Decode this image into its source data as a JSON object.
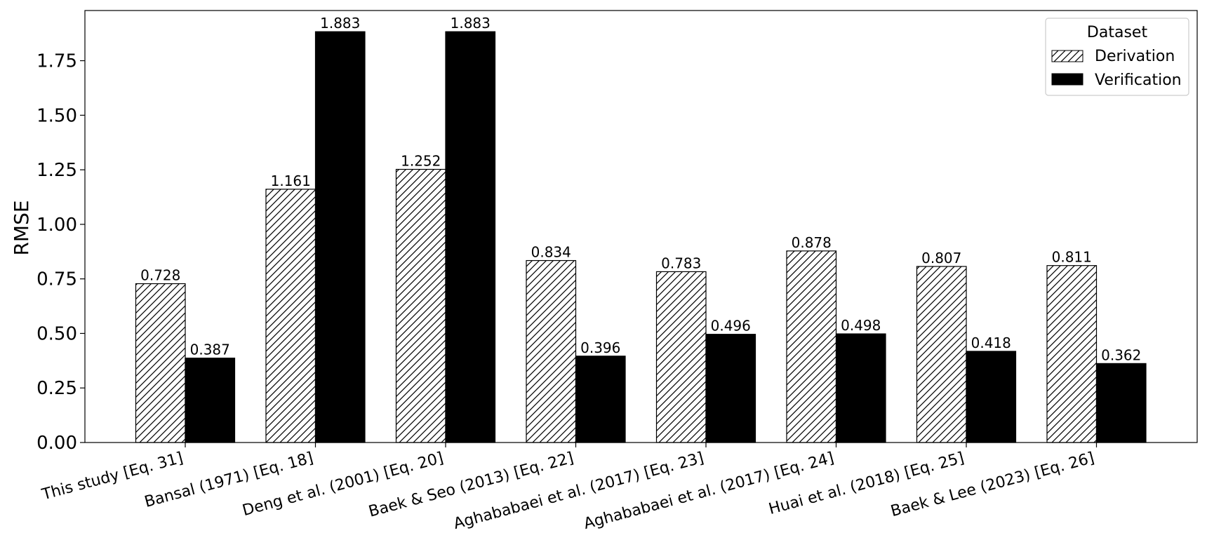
{
  "chart_data": {
    "type": "bar",
    "categories": [
      "This study [Eq. 31]",
      "Bansal (1971) [Eq. 18]",
      "Deng et al. (2001) [Eq. 20]",
      "Baek & Seo (2013) [Eq. 22]",
      "Aghababaei et al. (2017) [Eq. 23]",
      "Aghababaei et al. (2017) [Eq. 24]",
      "Huai et al. (2018) [Eq. 25]",
      "Baek & Lee (2023) [Eq. 26]"
    ],
    "series": [
      {
        "name": "Derivation",
        "values": [
          0.728,
          1.161,
          1.252,
          0.834,
          0.783,
          0.878,
          0.807,
          0.811
        ],
        "labels": [
          "0.728",
          "1.161",
          "1.252",
          "0.834",
          "0.783",
          "0.878",
          "0.807",
          "0.811"
        ],
        "fill": "hatch",
        "color": "#ffffff"
      },
      {
        "name": "Verification",
        "values": [
          0.387,
          1.883,
          1.883,
          0.396,
          0.496,
          0.498,
          0.418,
          0.362
        ],
        "labels": [
          "0.387",
          "1.883",
          "1.883",
          "0.396",
          "0.496",
          "0.498",
          "0.418",
          "0.362"
        ],
        "fill": "solid",
        "color": "#000000"
      }
    ],
    "xlabel": "",
    "ylabel": "RMSE",
    "ylim": [
      0,
      1.98
    ],
    "yticks": [
      0.0,
      0.25,
      0.5,
      0.75,
      1.0,
      1.25,
      1.5,
      1.75
    ],
    "ytick_labels": [
      "0.00",
      "0.25",
      "0.50",
      "0.75",
      "1.00",
      "1.25",
      "1.50",
      "1.75"
    ],
    "legend": {
      "title": "Dataset",
      "position": "top-right"
    },
    "grid": false
  }
}
